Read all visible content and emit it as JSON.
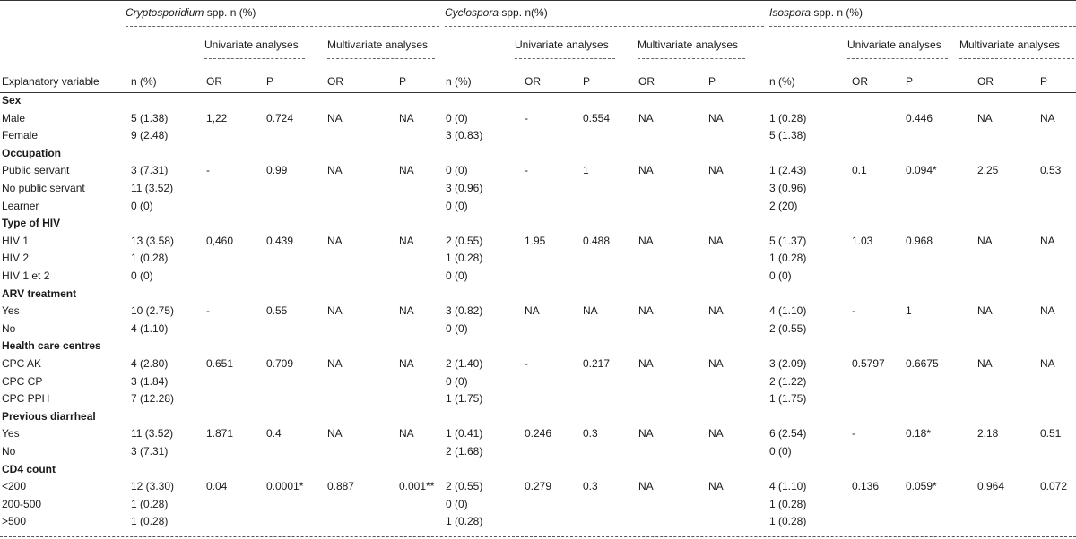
{
  "groups": [
    {
      "name": "Cryptosporidium",
      "suffix": " spp. n (%)"
    },
    {
      "name": "Cyclospora",
      "suffix": " spp. n(%)"
    },
    {
      "name": "Isospora",
      "suffix": " spp. n (%)"
    }
  ],
  "subheaders": {
    "univariate": "Univariate analyses",
    "multivariate": "Multivariate analyses"
  },
  "columns": [
    "Explanatory variable",
    "n (%)",
    "OR",
    "P",
    "OR",
    "P",
    "n (%)",
    "OR",
    "P",
    "OR",
    "P",
    "n (%)",
    "OR",
    "P",
    "OR",
    "P"
  ],
  "rows": [
    {
      "type": "section",
      "label": "Sex"
    },
    {
      "type": "data",
      "cells": [
        "Male",
        "5 (1.38)",
        "1,22",
        "0.724",
        "NA",
        "NA",
        "0 (0)",
        "-",
        "0.554",
        "NA",
        "NA",
        "1 (0.28)",
        "",
        "0.446",
        "NA",
        "NA"
      ]
    },
    {
      "type": "data",
      "cells": [
        "Female",
        "9 (2.48)",
        "",
        "",
        "",
        "",
        "3 (0.83)",
        "",
        "",
        "",
        "",
        "5 (1.38)",
        "",
        "",
        "",
        ""
      ]
    },
    {
      "type": "section",
      "label": "Occupation"
    },
    {
      "type": "data",
      "cells": [
        "Public servant",
        "3 (7.31)",
        "-",
        "0.99",
        "NA",
        "NA",
        "0 (0)",
        "-",
        "1",
        "NA",
        "NA",
        "1 (2.43)",
        "0.1",
        "0.094*",
        "2.25",
        "0.53"
      ]
    },
    {
      "type": "data",
      "cells": [
        "No public servant",
        "11 (3.52)",
        "",
        "",
        "",
        "",
        "3 (0.96)",
        "",
        "",
        "",
        "",
        "3 (0.96)",
        "",
        "",
        "",
        ""
      ]
    },
    {
      "type": "data",
      "cells": [
        "Learner",
        "0 (0)",
        "",
        "",
        "",
        "",
        "0 (0)",
        "",
        "",
        "",
        "",
        "2 (20)",
        "",
        "",
        "",
        ""
      ]
    },
    {
      "type": "section",
      "label": "Type of HIV"
    },
    {
      "type": "data",
      "cells": [
        "HIV 1",
        "13 (3.58)",
        "0,460",
        "0.439",
        "NA",
        "NA",
        "2 (0.55)",
        "1.95",
        "0.488",
        "NA",
        "NA",
        "5 (1.37)",
        "1.03",
        "0.968",
        "NA",
        "NA"
      ]
    },
    {
      "type": "data",
      "cells": [
        "HIV 2",
        "1 (0.28)",
        "",
        "",
        "",
        "",
        "1 (0.28)",
        "",
        "",
        "",
        "",
        "1 (0.28)",
        "",
        "",
        "",
        ""
      ]
    },
    {
      "type": "data",
      "cells": [
        "HIV 1 et 2",
        "0 (0)",
        "",
        "",
        "",
        "",
        "0 (0)",
        "",
        "",
        "",
        "",
        "0 (0)",
        "",
        "",
        "",
        ""
      ]
    },
    {
      "type": "section",
      "label": "ARV treatment"
    },
    {
      "type": "data",
      "cells": [
        "Yes",
        "10 (2.75)",
        "-",
        "0.55",
        "NA",
        "NA",
        "3 (0.82)",
        "NA",
        "NA",
        "NA",
        "NA",
        "4 (1.10)",
        "-",
        "1",
        "NA",
        "NA"
      ]
    },
    {
      "type": "data",
      "cells": [
        "No",
        "4 (1.10)",
        "",
        "",
        "",
        "",
        "0 (0)",
        "",
        "",
        "",
        "",
        "2 (0.55)",
        "",
        "",
        "",
        ""
      ]
    },
    {
      "type": "section",
      "label": "Health care centres"
    },
    {
      "type": "data",
      "cells": [
        "CPC AK",
        "4 (2.80)",
        "0.651",
        "0.709",
        "NA",
        "NA",
        "2 (1.40)",
        "-",
        "0.217",
        "NA",
        "NA",
        "3 (2.09)",
        "0.5797",
        "0.6675",
        "NA",
        "NA"
      ]
    },
    {
      "type": "data",
      "cells": [
        "CPC CP",
        "3 (1.84)",
        "",
        "",
        "",
        "",
        "0 (0)",
        "",
        "",
        "",
        "",
        "2 (1.22)",
        "",
        "",
        "",
        ""
      ]
    },
    {
      "type": "data",
      "cells": [
        "CPC PPH",
        "7 (12.28)",
        "",
        "",
        "",
        "",
        "1 (1.75)",
        "",
        "",
        "",
        "",
        "1 (1.75)",
        "",
        "",
        "",
        ""
      ]
    },
    {
      "type": "section",
      "label": "Previous diarrheal"
    },
    {
      "type": "data",
      "cells": [
        "Yes",
        "11 (3.52)",
        "1.871",
        "0.4",
        "NA",
        "NA",
        "1 (0.41)",
        "0.246",
        "0.3",
        "NA",
        "NA",
        "6 (2.54)",
        "-",
        "0.18*",
        "2.18",
        "0.51"
      ]
    },
    {
      "type": "data",
      "cells": [
        "No",
        "3 (7.31)",
        "",
        "",
        "",
        "",
        "2 (1.68)",
        "",
        "",
        "",
        "",
        "0 (0)",
        "",
        "",
        "",
        ""
      ]
    },
    {
      "type": "section",
      "label": "CD4 count"
    },
    {
      "type": "data",
      "cells": [
        "<200",
        "12 (3.30)",
        "0.04",
        "0.0001*",
        "0.887",
        "0.001**",
        "2 (0.55)",
        "0.279",
        "0.3",
        "NA",
        "NA",
        "4 (1.10)",
        "0.136",
        "0.059*",
        "0.964",
        "0.072"
      ]
    },
    {
      "type": "data",
      "cells": [
        "200-500",
        "1 (0.28)",
        "",
        "",
        "",
        "",
        "0 (0)",
        "",
        "",
        "",
        "",
        "1 (0.28)",
        "",
        "",
        "",
        ""
      ]
    },
    {
      "type": "data",
      "cells": [
        ">500",
        "1 (0.28)",
        "",
        "",
        "",
        "",
        "1 (0.28)",
        "",
        "",
        "",
        "",
        "1 (0.28)",
        "",
        "",
        "",
        ""
      ],
      "underline_first": true
    }
  ]
}
